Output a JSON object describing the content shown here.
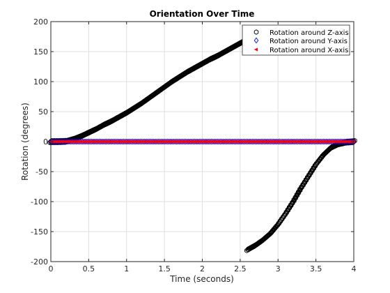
{
  "chart_data": {
    "type": "scatter",
    "title": "Orientation Over Time",
    "xlabel": "Time (seconds)",
    "ylabel": "Rotation (degrees)",
    "xlim": [
      0,
      4
    ],
    "ylim": [
      -200,
      200
    ],
    "xticks": [
      0,
      0.5,
      1,
      1.5,
      2,
      2.5,
      3,
      3.5,
      4
    ],
    "xtick_labels": [
      "0",
      "0.5",
      "1",
      "1.5",
      "2",
      "2.5",
      "3",
      "3.5",
      "4"
    ],
    "yticks": [
      -200,
      -150,
      -100,
      -50,
      0,
      50,
      100,
      150,
      200
    ],
    "ytick_labels": [
      "-200",
      "-150",
      "-100",
      "-50",
      "0",
      "50",
      "100",
      "150",
      "200"
    ],
    "grid": true,
    "legend_position": "top-right",
    "colors": {
      "z": "#000000",
      "y": "#0000ff",
      "x": "#ff0000"
    },
    "series": [
      {
        "name": "Rotation around Z-axis",
        "marker": "hexagon",
        "color": "#000000",
        "points": [
          [
            0,
            0
          ],
          [
            0.1,
            0
          ],
          [
            0.2,
            0.5
          ],
          [
            0.3,
            4
          ],
          [
            0.4,
            9
          ],
          [
            0.5,
            15
          ],
          [
            0.6,
            21
          ],
          [
            0.7,
            28
          ],
          [
            0.8,
            34
          ],
          [
            0.9,
            41
          ],
          [
            1.0,
            48
          ],
          [
            1.1,
            56
          ],
          [
            1.2,
            64
          ],
          [
            1.3,
            73
          ],
          [
            1.4,
            82
          ],
          [
            1.5,
            91
          ],
          [
            1.6,
            100
          ],
          [
            1.7,
            108
          ],
          [
            1.8,
            116
          ],
          [
            1.9,
            123
          ],
          [
            2.0,
            130
          ],
          [
            2.1,
            137
          ],
          [
            2.2,
            143
          ],
          [
            2.3,
            150
          ],
          [
            2.4,
            157
          ],
          [
            2.5,
            164
          ],
          [
            2.6,
            171
          ],
          [
            2.65,
            176
          ],
          [
            2.6,
            -180
          ],
          [
            2.7,
            -173
          ],
          [
            2.8,
            -164
          ],
          [
            2.9,
            -153
          ],
          [
            3.0,
            -138
          ],
          [
            3.1,
            -120
          ],
          [
            3.2,
            -100
          ],
          [
            3.3,
            -78
          ],
          [
            3.4,
            -58
          ],
          [
            3.5,
            -38
          ],
          [
            3.6,
            -22
          ],
          [
            3.7,
            -10
          ],
          [
            3.8,
            -4
          ],
          [
            3.9,
            -1
          ],
          [
            4.0,
            0
          ]
        ]
      },
      {
        "name": "Rotation around Y-axis",
        "marker": "diamond",
        "color": "#0000ff",
        "points": [
          [
            0,
            0
          ],
          [
            0.1,
            0
          ],
          [
            0.2,
            0
          ],
          [
            0.3,
            0
          ],
          [
            0.4,
            0
          ],
          [
            0.5,
            0
          ],
          [
            0.6,
            0
          ],
          [
            0.7,
            0
          ],
          [
            0.8,
            0
          ],
          [
            0.9,
            0
          ],
          [
            1.0,
            0
          ],
          [
            1.1,
            0
          ],
          [
            1.2,
            0
          ],
          [
            1.3,
            0
          ],
          [
            1.4,
            0
          ],
          [
            1.5,
            0
          ],
          [
            1.6,
            0
          ],
          [
            1.7,
            0
          ],
          [
            1.8,
            0
          ],
          [
            1.9,
            0
          ],
          [
            2.0,
            0
          ],
          [
            2.1,
            0
          ],
          [
            2.2,
            0
          ],
          [
            2.3,
            0
          ],
          [
            2.4,
            0
          ],
          [
            2.5,
            0
          ],
          [
            2.6,
            0
          ],
          [
            2.7,
            0
          ],
          [
            2.8,
            0
          ],
          [
            2.9,
            0
          ],
          [
            3.0,
            0
          ],
          [
            3.1,
            0
          ],
          [
            3.2,
            0
          ],
          [
            3.3,
            0
          ],
          [
            3.4,
            0
          ],
          [
            3.5,
            0
          ],
          [
            3.6,
            0
          ],
          [
            3.7,
            0
          ],
          [
            3.8,
            0
          ],
          [
            3.9,
            0
          ],
          [
            4.0,
            0
          ]
        ]
      },
      {
        "name": "Rotation around X-axis",
        "marker": "triangle-left",
        "color": "#ff0000",
        "points": [
          [
            0,
            0
          ],
          [
            0.1,
            0
          ],
          [
            0.2,
            0
          ],
          [
            0.3,
            0
          ],
          [
            0.4,
            0
          ],
          [
            0.5,
            0
          ],
          [
            0.6,
            0
          ],
          [
            0.7,
            0
          ],
          [
            0.8,
            0
          ],
          [
            0.9,
            0
          ],
          [
            1.0,
            0
          ],
          [
            1.1,
            0
          ],
          [
            1.2,
            0
          ],
          [
            1.3,
            0
          ],
          [
            1.4,
            0
          ],
          [
            1.5,
            0
          ],
          [
            1.6,
            0
          ],
          [
            1.7,
            0
          ],
          [
            1.8,
            0
          ],
          [
            1.9,
            0
          ],
          [
            2.0,
            0
          ],
          [
            2.1,
            0
          ],
          [
            2.2,
            0
          ],
          [
            2.3,
            0
          ],
          [
            2.4,
            0
          ],
          [
            2.5,
            0
          ],
          [
            2.6,
            0
          ],
          [
            2.7,
            0
          ],
          [
            2.8,
            0
          ],
          [
            2.9,
            0
          ],
          [
            3.0,
            0
          ],
          [
            3.1,
            0
          ],
          [
            3.2,
            0
          ],
          [
            3.3,
            0
          ],
          [
            3.4,
            0
          ],
          [
            3.5,
            0
          ],
          [
            3.6,
            0
          ],
          [
            3.7,
            0
          ],
          [
            3.8,
            0
          ],
          [
            3.9,
            0
          ],
          [
            4.0,
            0
          ]
        ]
      }
    ]
  }
}
